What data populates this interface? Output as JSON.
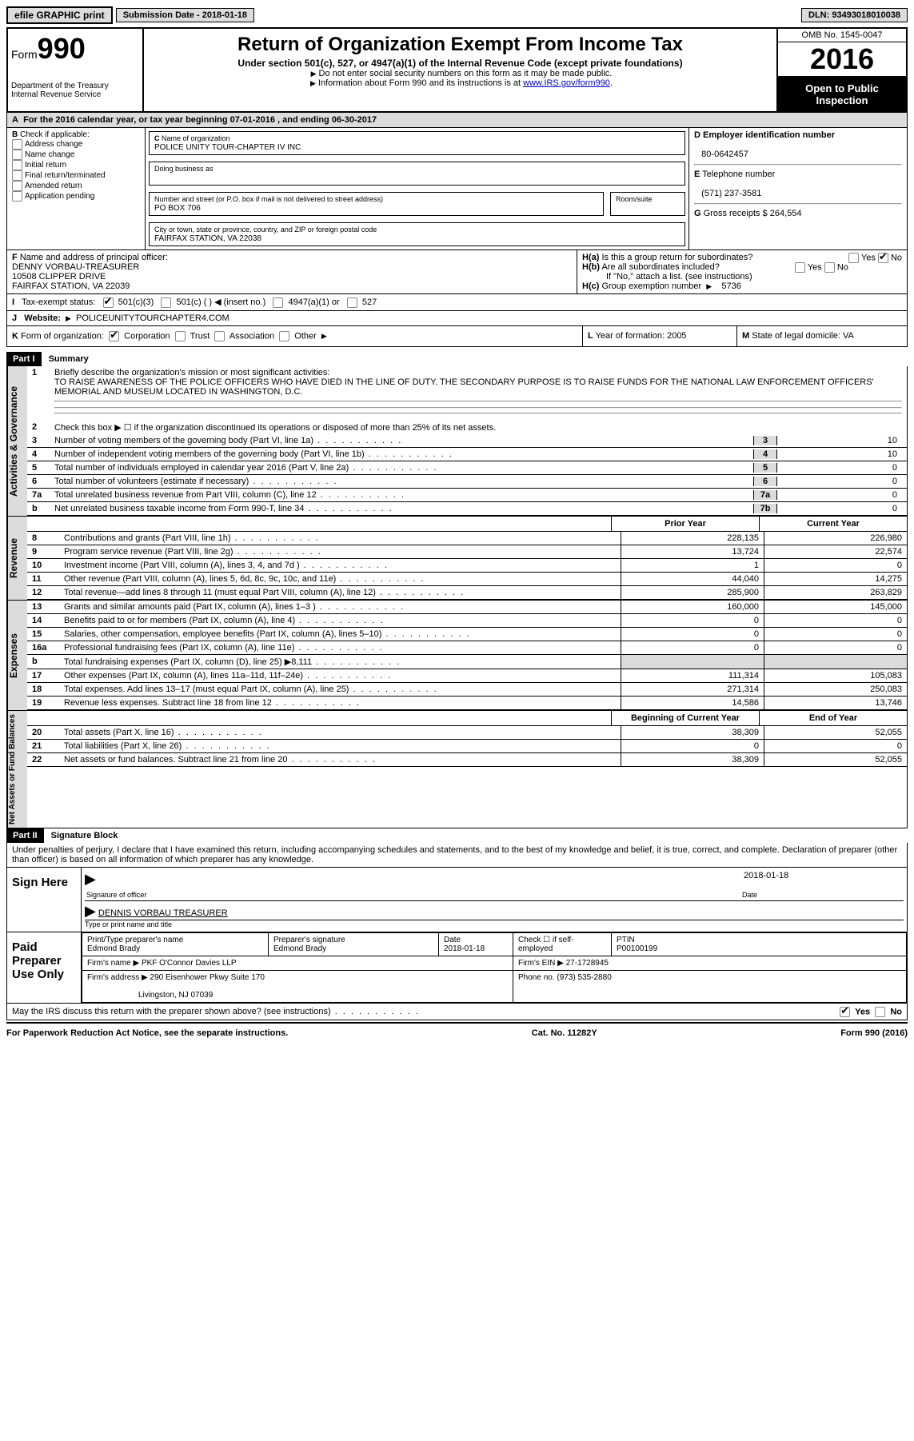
{
  "top": {
    "efile": "efile GRAPHIC print",
    "submission": "Submission Date - 2018-01-18",
    "dln": "DLN: 93493018010038"
  },
  "header": {
    "form_word": "Form",
    "form_num": "990",
    "dept": "Department of the Treasury",
    "irs": "Internal Revenue Service",
    "title": "Return of Organization Exempt From Income Tax",
    "subtitle": "Under section 501(c), 527, or 4947(a)(1) of the Internal Revenue Code (except private foundations)",
    "note1": "Do not enter social security numbers on this form as it may be made public.",
    "note2": "Information about Form 990 and its instructions is at ",
    "note2_link": "www.IRS.gov/form990",
    "omb": "OMB No. 1545-0047",
    "year": "2016",
    "open": "Open to Public Inspection"
  },
  "A": {
    "text": "For the 2016 calendar year, or tax year beginning 07-01-2016   , and ending 06-30-2017"
  },
  "B": {
    "label": "Check if applicable:",
    "opts": [
      "Address change",
      "Name change",
      "Initial return",
      "Final return/terminated",
      "Amended return",
      "Application pending"
    ]
  },
  "C": {
    "name_label": "Name of organization",
    "name": "POLICE UNITY TOUR-CHAPTER IV INC",
    "dba_label": "Doing business as",
    "dba": "",
    "street_label": "Number and street (or P.O. box if mail is not delivered to street address)",
    "room_label": "Room/suite",
    "street": "PO BOX 706",
    "city_label": "City or town, state or province, country, and ZIP or foreign postal code",
    "city": "FAIRFAX STATION, VA  22038"
  },
  "D": {
    "label": "Employer identification number",
    "value": "80-0642457"
  },
  "E": {
    "label": "Telephone number",
    "value": "(571) 237-3581"
  },
  "G": {
    "label": "Gross receipts $",
    "value": "264,554"
  },
  "F": {
    "label": "Name and address of principal officer:",
    "name": "DENNY VORBAU-TREASURER",
    "addr1": "10508 CLIPPER DRIVE",
    "addr2": "FAIRFAX STATION, VA  22039"
  },
  "H": {
    "a": "Is this a group return for subordinates?",
    "b": "Are all subordinates included?",
    "b_note": "If \"No,\" attach a list. (see instructions)",
    "c": "Group exemption number",
    "c_val": "5736",
    "yes": "Yes",
    "no": "No"
  },
  "I": {
    "label": "Tax-exempt status:",
    "o1": "501(c)(3)",
    "o2": "501(c) (   )",
    "o2_hint": "(insert no.)",
    "o3": "4947(a)(1) or",
    "o4": "527"
  },
  "J": {
    "label": "Website:",
    "value": "POLICEUNITYTOURCHAPTER4.COM"
  },
  "K": {
    "label": "Form of organization:",
    "opts": [
      "Corporation",
      "Trust",
      "Association",
      "Other"
    ]
  },
  "L": {
    "label": "Year of formation:",
    "value": "2005"
  },
  "M": {
    "label": "State of legal domicile:",
    "value": "VA"
  },
  "part1": {
    "title": "Part I",
    "name": "Summary",
    "l1_label": "Briefly describe the organization's mission or most significant activities:",
    "l1_text": "TO RAISE AWARENESS OF THE POLICE OFFICERS WHO HAVE DIED IN THE LINE OF DUTY. THE SECONDARY PURPOSE IS TO RAISE FUNDS FOR THE NATIONAL LAW ENFORCEMENT OFFICERS' MEMORIAL AND MUSEUM LOCATED IN WASHINGTON, D.C.",
    "l2": "Check this box ▶ ☐  if the organization discontinued its operations or disposed of more than 25% of its net assets.",
    "lines_a": [
      {
        "n": "3",
        "t": "Number of voting members of the governing body (Part VI, line 1a)",
        "b": "3",
        "v": "10"
      },
      {
        "n": "4",
        "t": "Number of independent voting members of the governing body (Part VI, line 1b)",
        "b": "4",
        "v": "10"
      },
      {
        "n": "5",
        "t": "Total number of individuals employed in calendar year 2016 (Part V, line 2a)",
        "b": "5",
        "v": "0"
      },
      {
        "n": "6",
        "t": "Total number of volunteers (estimate if necessary)",
        "b": "6",
        "v": "0"
      },
      {
        "n": "7a",
        "t": "Total unrelated business revenue from Part VIII, column (C), line 12",
        "b": "7a",
        "v": "0"
      },
      {
        "n": "b",
        "t": "Net unrelated business taxable income from Form 990-T, line 34",
        "b": "7b",
        "v": "0"
      }
    ],
    "col_prior": "Prior Year",
    "col_current": "Current Year",
    "revenue": [
      {
        "n": "8",
        "t": "Contributions and grants (Part VIII, line 1h)",
        "p": "228,135",
        "c": "226,980"
      },
      {
        "n": "9",
        "t": "Program service revenue (Part VIII, line 2g)",
        "p": "13,724",
        "c": "22,574"
      },
      {
        "n": "10",
        "t": "Investment income (Part VIII, column (A), lines 3, 4, and 7d )",
        "p": "1",
        "c": "0"
      },
      {
        "n": "11",
        "t": "Other revenue (Part VIII, column (A), lines 5, 6d, 8c, 9c, 10c, and 11e)",
        "p": "44,040",
        "c": "14,275"
      },
      {
        "n": "12",
        "t": "Total revenue—add lines 8 through 11 (must equal Part VIII, column (A), line 12)",
        "p": "285,900",
        "c": "263,829"
      }
    ],
    "expenses": [
      {
        "n": "13",
        "t": "Grants and similar amounts paid (Part IX, column (A), lines 1–3 )",
        "p": "160,000",
        "c": "145,000"
      },
      {
        "n": "14",
        "t": "Benefits paid to or for members (Part IX, column (A), line 4)",
        "p": "0",
        "c": "0"
      },
      {
        "n": "15",
        "t": "Salaries, other compensation, employee benefits (Part IX, column (A), lines 5–10)",
        "p": "0",
        "c": "0"
      },
      {
        "n": "16a",
        "t": "Professional fundraising fees (Part IX, column (A), line 11e)",
        "p": "0",
        "c": "0"
      },
      {
        "n": "b",
        "t": "Total fundraising expenses (Part IX, column (D), line 25) ▶8,111",
        "p": "",
        "c": "",
        "shade": true
      },
      {
        "n": "17",
        "t": "Other expenses (Part IX, column (A), lines 11a–11d, 11f–24e)",
        "p": "111,314",
        "c": "105,083"
      },
      {
        "n": "18",
        "t": "Total expenses. Add lines 13–17 (must equal Part IX, column (A), line 25)",
        "p": "271,314",
        "c": "250,083"
      },
      {
        "n": "19",
        "t": "Revenue less expenses. Subtract line 18 from line 12",
        "p": "14,586",
        "c": "13,746"
      }
    ],
    "col_begin": "Beginning of Current Year",
    "col_end": "End of Year",
    "net": [
      {
        "n": "20",
        "t": "Total assets (Part X, line 16)",
        "p": "38,309",
        "c": "52,055"
      },
      {
        "n": "21",
        "t": "Total liabilities (Part X, line 26)",
        "p": "0",
        "c": "0"
      },
      {
        "n": "22",
        "t": "Net assets or fund balances. Subtract line 21 from line 20",
        "p": "38,309",
        "c": "52,055"
      }
    ],
    "tab_gov": "Activities & Governance",
    "tab_rev": "Revenue",
    "tab_exp": "Expenses",
    "tab_net": "Net Assets or Fund Balances"
  },
  "part2": {
    "title": "Part II",
    "name": "Signature Block",
    "declaration": "Under penalties of perjury, I declare that I have examined this return, including accompanying schedules and statements, and to the best of my knowledge and belief, it is true, correct, and complete. Declaration of preparer (other than officer) is based on all information of which preparer has any knowledge.",
    "sign_here": "Sign Here",
    "sig_officer": "Signature of officer",
    "sig_date": "Date",
    "sig_date_val": "2018-01-18",
    "sig_name": "DENNIS VORBAU TREASURER",
    "sig_name_label": "Type or print name and title",
    "paid": "Paid Preparer Use Only",
    "prep_name_label": "Print/Type preparer's name",
    "prep_name": "Edmond Brady",
    "prep_sig_label": "Preparer's signature",
    "prep_sig": "Edmond Brady",
    "prep_date_label": "Date",
    "prep_date": "2018-01-18",
    "prep_check": "Check ☐ if self-employed",
    "ptin_label": "PTIN",
    "ptin": "P00100199",
    "firm_name_label": "Firm's name    ▶",
    "firm_name": "PKF O'Connor Davies LLP",
    "firm_ein_label": "Firm's EIN ▶",
    "firm_ein": "27-1728945",
    "firm_addr_label": "Firm's address ▶",
    "firm_addr": "290 Eisenhower Pkwy Suite 170",
    "firm_addr2": "Livingston, NJ  07039",
    "firm_phone_label": "Phone no.",
    "firm_phone": "(973) 535-2880",
    "discuss": "May the IRS discuss this return with the preparer shown above? (see instructions)"
  },
  "footer": {
    "left": "For Paperwork Reduction Act Notice, see the separate instructions.",
    "center": "Cat. No. 11282Y",
    "right": "Form 990 (2016)"
  }
}
